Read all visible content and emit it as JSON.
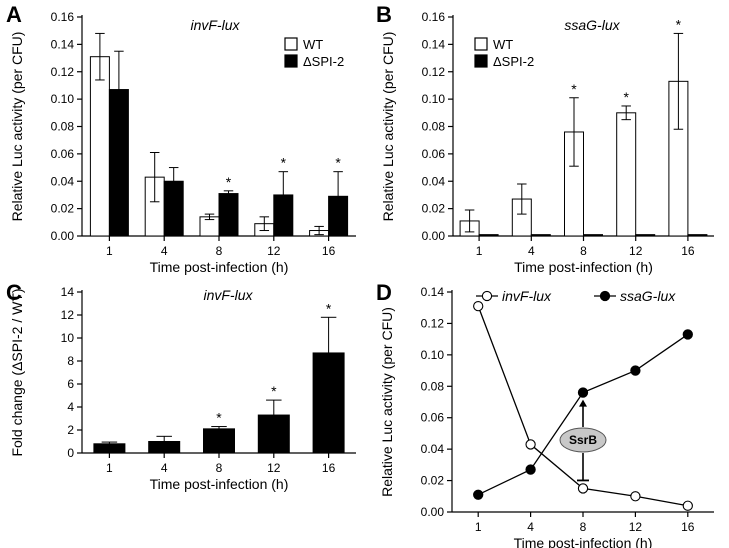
{
  "colors": {
    "filled": "#000000",
    "open": "#ffffff",
    "stroke": "#000000",
    "note_bg": "#c8c8c8"
  },
  "panels": [
    {
      "letter": "A",
      "chart_data": {
        "type": "bar",
        "title": "invF-lux",
        "xlabel": "Time post-infection (h)",
        "ylabel": "Relative Luc activity (per CFU)",
        "categories": [
          "1",
          "4",
          "8",
          "12",
          "16"
        ],
        "ylim": [
          0,
          0.16
        ],
        "yticks": [
          "0.00",
          "0.02",
          "0.04",
          "0.06",
          "0.08",
          "0.10",
          "0.12",
          "0.14",
          "0.16"
        ],
        "legend_position": "top-right",
        "series": [
          {
            "name": "WT",
            "fill": "open",
            "values": [
              0.131,
              0.043,
              0.014,
              0.009,
              0.004
            ],
            "errors": [
              0.017,
              0.018,
              0.002,
              0.005,
              0.003
            ]
          },
          {
            "name": "ΔSPI-2",
            "fill": "filled",
            "values": [
              0.107,
              0.04,
              0.031,
              0.03,
              0.029
            ],
            "errors": [
              0.028,
              0.01,
              0.002,
              0.017,
              0.018
            ]
          }
        ],
        "significance": [
          {
            "category": "8",
            "label": "*"
          },
          {
            "category": "12",
            "label": "*"
          },
          {
            "category": "16",
            "label": "*"
          }
        ]
      }
    },
    {
      "letter": "B",
      "chart_data": {
        "type": "bar",
        "title": "ssaG-lux",
        "xlabel": "Time post-infection (h)",
        "ylabel": "Relative Luc activity (per CFU)",
        "categories": [
          "1",
          "4",
          "8",
          "12",
          "16"
        ],
        "ylim": [
          0,
          0.16
        ],
        "yticks": [
          "0.00",
          "0.02",
          "0.04",
          "0.06",
          "0.08",
          "0.10",
          "0.12",
          "0.14",
          "0.16"
        ],
        "legend_position": "top-left",
        "series": [
          {
            "name": "WT",
            "fill": "open",
            "values": [
              0.011,
              0.027,
              0.076,
              0.09,
              0.113
            ],
            "errors": [
              0.008,
              0.011,
              0.025,
              0.005,
              0.035
            ]
          },
          {
            "name": "ΔSPI-2",
            "fill": "filled",
            "values": [
              0.001,
              0.001,
              0.001,
              0.001,
              0.001
            ],
            "errors": [
              0,
              0,
              0,
              0,
              0
            ]
          }
        ],
        "significance": [
          {
            "category": "8",
            "label": "*"
          },
          {
            "category": "12",
            "label": "*"
          },
          {
            "category": "16",
            "label": "*"
          }
        ]
      }
    },
    {
      "letter": "C",
      "chart_data": {
        "type": "bar",
        "title": "invF-lux",
        "xlabel": "Time post-infection (h)",
        "ylabel": "Fold change (ΔSPI-2 / WT)",
        "categories": [
          "1",
          "4",
          "8",
          "12",
          "16"
        ],
        "ylim": [
          0,
          14
        ],
        "yticks": [
          "0",
          "2",
          "4",
          "6",
          "8",
          "10",
          "12",
          "14"
        ],
        "series": [
          {
            "name": "ΔSPI-2 / WT",
            "fill": "filled",
            "values": [
              0.8,
              1.0,
              2.1,
              3.3,
              8.7
            ],
            "errors": [
              0.15,
              0.45,
              0.2,
              1.3,
              3.1
            ]
          }
        ],
        "significance": [
          {
            "category": "8",
            "label": "*"
          },
          {
            "category": "12",
            "label": "*"
          },
          {
            "category": "16",
            "label": "*"
          }
        ]
      }
    },
    {
      "letter": "D",
      "chart_data": {
        "type": "line",
        "title": "",
        "xlabel": "Time post-infection (h)",
        "ylabel": "Relative Luc activity (per CFU)",
        "categories": [
          "1",
          "4",
          "8",
          "12",
          "16"
        ],
        "ylim": [
          0,
          0.14
        ],
        "yticks": [
          "0.00",
          "0.02",
          "0.04",
          "0.06",
          "0.08",
          "0.10",
          "0.12",
          "0.14"
        ],
        "legend_position": "top",
        "series": [
          {
            "name": "invF-lux",
            "marker": "open-circle",
            "values": [
              0.131,
              0.043,
              0.015,
              0.01,
              0.004
            ]
          },
          {
            "name": "ssaG-lux",
            "marker": "filled-circle",
            "values": [
              0.011,
              0.027,
              0.076,
              0.09,
              0.113
            ]
          }
        ],
        "annotations": [
          {
            "label": "SsrB",
            "category": "8"
          }
        ]
      }
    }
  ]
}
